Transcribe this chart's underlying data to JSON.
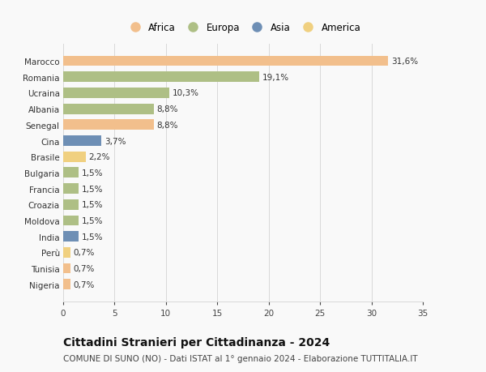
{
  "categories": [
    "Nigeria",
    "Tunisia",
    "Perù",
    "India",
    "Moldova",
    "Croazia",
    "Francia",
    "Bulgaria",
    "Brasile",
    "Cina",
    "Senegal",
    "Albania",
    "Ucraina",
    "Romania",
    "Marocco"
  ],
  "values": [
    0.7,
    0.7,
    0.7,
    1.5,
    1.5,
    1.5,
    1.5,
    1.5,
    2.2,
    3.7,
    8.8,
    8.8,
    10.3,
    19.1,
    31.6
  ],
  "labels": [
    "0,7%",
    "0,7%",
    "0,7%",
    "1,5%",
    "1,5%",
    "1,5%",
    "1,5%",
    "1,5%",
    "2,2%",
    "3,7%",
    "8,8%",
    "8,8%",
    "10,3%",
    "19,1%",
    "31,6%"
  ],
  "continents": [
    "Africa",
    "Africa",
    "America",
    "Asia",
    "Europa",
    "Europa",
    "Europa",
    "Europa",
    "America",
    "Asia",
    "Africa",
    "Europa",
    "Europa",
    "Europa",
    "Africa"
  ],
  "colors": {
    "Africa": "#F2BF8C",
    "Europa": "#AEBF85",
    "Asia": "#6E8FB5",
    "America": "#F0D080"
  },
  "legend_order": [
    "Africa",
    "Europa",
    "Asia",
    "America"
  ],
  "xlim": [
    0,
    35
  ],
  "xticks": [
    0,
    5,
    10,
    15,
    20,
    25,
    30,
    35
  ],
  "title": "Cittadini Stranieri per Cittadinanza - 2024",
  "subtitle": "COMUNE DI SUNO (NO) - Dati ISTAT al 1° gennaio 2024 - Elaborazione TUTTITALIA.IT",
  "background_color": "#f9f9f9",
  "grid_color": "#d8d8d8",
  "bar_height": 0.65,
  "title_fontsize": 10,
  "subtitle_fontsize": 7.5,
  "label_fontsize": 7.5,
  "tick_fontsize": 7.5,
  "legend_fontsize": 8.5
}
